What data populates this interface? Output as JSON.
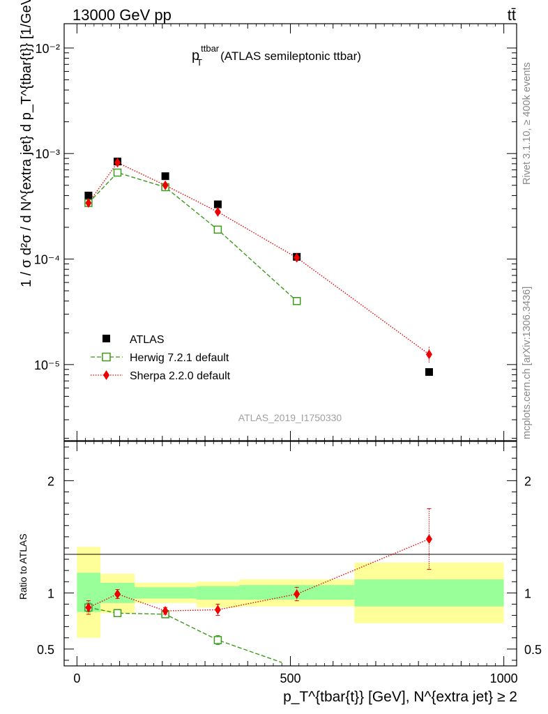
{
  "header": {
    "energy_label": "13000 GeV pp",
    "process_label": "tt̄"
  },
  "side_labels": {
    "rivet": "Rivet 3.1.10, ≥ 400k events",
    "source": "mcplots.cern.ch [arXiv:1306.3436]"
  },
  "analysis_id": "ATLAS_2019_I1750330",
  "colors": {
    "data": "#000000",
    "herwig": "#3a9a1a",
    "sherpa": "#ee0000",
    "band_inner": "#99ff99",
    "band_outer": "#ffff99"
  },
  "chart_data": [
    {
      "type": "scatter",
      "panel": "main",
      "title_main": "p",
      "title_sup": "ttbar",
      "title_sub": "T",
      "title_rest": "(ATLAS semileptonic ttbar)",
      "ylabel": "1 / σ d²σ / d N^{extra jet} d p_T^{tbar{t}} [1/GeV]",
      "yscale": "log",
      "ylim": [
        1.9e-06,
        0.017
      ],
      "xlim": [
        -30,
        1030
      ],
      "ytick_labels": [
        "10⁻⁵",
        "10⁻⁴",
        "10⁻³",
        "10⁻²"
      ],
      "ytick_values": [
        1e-05,
        0.0001,
        0.001,
        0.01
      ],
      "legend": [
        "ATLAS",
        "Herwig 7.2.1 default",
        "Sherpa 2.2.0 default"
      ],
      "series": [
        {
          "name": "ATLAS",
          "x": [
            27,
            95,
            207,
            330,
            515,
            825
          ],
          "y": [
            0.0004,
            0.00084,
            0.00061,
            0.00033,
            0.000105,
            8.5e-06
          ]
        },
        {
          "name": "Herwig 7.2.1 default",
          "x": [
            27,
            95,
            207,
            330,
            515
          ],
          "y": [
            0.00034,
            0.00066,
            0.00048,
            0.00019,
            4e-05
          ]
        },
        {
          "name": "Sherpa 2.2.0 default",
          "x": [
            27,
            95,
            207,
            330,
            515,
            825
          ],
          "y": [
            0.00034,
            0.00082,
            0.0005,
            0.00028,
            0.000103,
            1.25e-05
          ],
          "yerr": [
            2e-05,
            3e-05,
            2e-05,
            1e-05,
            5e-06,
            2.2e-06
          ]
        }
      ]
    },
    {
      "type": "scatter",
      "panel": "ratio",
      "ylabel": "Ratio to ATLAS",
      "xlabel": "p_T^{tbar{t}} [GeV], N^{extra jet} ≥ 2",
      "ylim": [
        0.35,
        2.35
      ],
      "xlim": [
        -30,
        1030
      ],
      "xticks": [
        0,
        500,
        1000
      ],
      "xtick_labels": [
        "0",
        "500",
        "1000"
      ],
      "yticks": [
        0.5,
        1,
        2
      ],
      "ytick_labels": [
        "0.5",
        "1",
        "2"
      ],
      "bands": [
        {
          "x0": 0,
          "x1": 55,
          "inner": [
            0.83,
            1.18
          ],
          "outer": [
            0.6,
            1.41
          ]
        },
        {
          "x0": 55,
          "x1": 135,
          "inner": [
            0.91,
            1.09
          ],
          "outer": [
            0.82,
            1.17
          ]
        },
        {
          "x0": 135,
          "x1": 280,
          "inner": [
            0.95,
            1.05
          ],
          "outer": [
            0.91,
            1.09
          ]
        },
        {
          "x0": 280,
          "x1": 380,
          "inner": [
            0.94,
            1.06
          ],
          "outer": [
            0.87,
            1.1
          ]
        },
        {
          "x0": 380,
          "x1": 650,
          "inner": [
            0.94,
            1.07
          ],
          "outer": [
            0.88,
            1.12
          ]
        },
        {
          "x0": 650,
          "x1": 1000,
          "inner": [
            0.88,
            1.12
          ],
          "outer": [
            0.73,
            1.27
          ]
        }
      ],
      "series": [
        {
          "name": "Herwig 7.2.1 default",
          "x": [
            27,
            95,
            207,
            330,
            480
          ],
          "y": [
            0.87,
            0.82,
            0.81,
            0.58,
            0.38
          ],
          "yerr": [
            0.04,
            0.02,
            0.02,
            0.04,
            0.0
          ],
          "markers": [
            true,
            true,
            true,
            true,
            false
          ]
        },
        {
          "name": "Sherpa 2.2.0 default",
          "x": [
            27,
            95,
            207,
            330,
            515,
            825
          ],
          "y": [
            0.87,
            0.99,
            0.84,
            0.85,
            0.99,
            1.48
          ],
          "yerr": [
            0.06,
            0.04,
            0.03,
            0.05,
            0.06,
            0.27
          ]
        }
      ]
    }
  ]
}
